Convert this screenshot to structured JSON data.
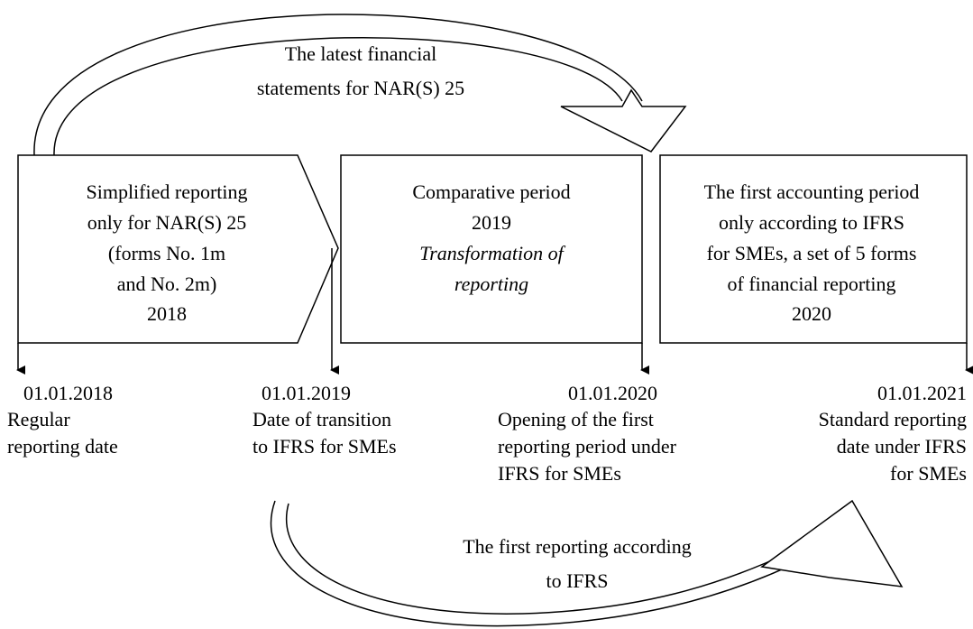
{
  "top_arrow": {
    "lines": [
      "The latest financial",
      "statements for NAR(S) 25"
    ]
  },
  "boxes": [
    {
      "lines": [
        "Simplified reporting",
        "only for NAR(S) 25",
        "(forms No. 1m",
        "and No. 2m)",
        "2018"
      ]
    },
    {
      "lines": [
        "Comparative period",
        "2019",
        "Transformation of",
        "reporting"
      ]
    },
    {
      "lines": [
        "The first accounting period",
        "only according to IFRS",
        "for SMEs, a set of 5 forms",
        "of financial reporting",
        "2020"
      ]
    }
  ],
  "dates": [
    {
      "date": "01.01.2018",
      "lines": [
        "Regular",
        "reporting date"
      ]
    },
    {
      "date": "01.01.2019",
      "lines": [
        "Date of transition",
        "to IFRS for SMEs"
      ]
    },
    {
      "date": "01.01.2020",
      "lines": [
        "Opening of the first",
        "reporting period under",
        "IFRS for SMEs"
      ]
    },
    {
      "date": "01.01.2021",
      "lines": [
        "Standard reporting",
        "date under IFRS",
        "for SMEs"
      ]
    }
  ],
  "bottom_arrow": {
    "lines": [
      "The first reporting according",
      "to IFRS"
    ]
  }
}
